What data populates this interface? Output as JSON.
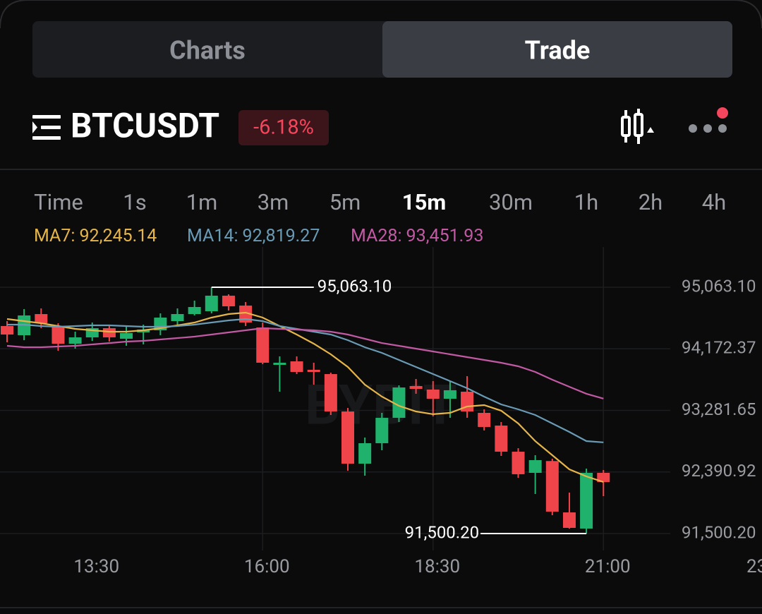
{
  "tabs": [
    "Charts",
    "Trade"
  ],
  "header": {
    "symbol": "BTCUSDT",
    "change": "-6.18%"
  },
  "intervals": [
    "Time",
    "1s",
    "1m",
    "3m",
    "5m",
    "15m",
    "30m",
    "1h",
    "2h",
    "4h"
  ],
  "selected_interval": "15m",
  "chart_data": {
    "type": "candlestick",
    "watermark": "BYBIT",
    "categories": [
      null,
      null,
      null,
      null,
      null,
      "13:30",
      null,
      null,
      null,
      null,
      null,
      null,
      null,
      null,
      null,
      "16:00",
      null,
      null,
      null,
      null,
      null,
      null,
      null,
      null,
      null,
      "18:30",
      null,
      null,
      null,
      null,
      null,
      null,
      null,
      null,
      null,
      "21:00"
    ],
    "x_overflow_label": "23",
    "open": [
      94502,
      94369,
      94675,
      94491,
      94246,
      94338,
      94471,
      94318,
      94410,
      94440,
      94573,
      94675,
      94716,
      94941,
      94798,
      94481,
      93940,
      93991,
      93869,
      93807,
      93266,
      92511,
      92807,
      93174,
      93634,
      93583,
      93450,
      93552,
      93246,
      93062,
      92684,
      92378,
      92549,
      91806,
      91572,
      92378
    ],
    "high": [
      94573,
      94747,
      94757,
      94542,
      94420,
      94553,
      94522,
      94502,
      94522,
      94685,
      94757,
      94869,
      95063.1,
      94961,
      94849,
      94553,
      94063,
      94063,
      93971,
      93828,
      93317,
      92889,
      93246,
      93644,
      93736,
      93705,
      93705,
      93777,
      93297,
      93113,
      92735,
      92633,
      92582,
      92092,
      92439,
      92419
    ],
    "low": [
      94267,
      94297,
      94471,
      94144,
      94175,
      94287,
      94277,
      94216,
      94236,
      94369,
      94522,
      94655,
      94685,
      94726,
      94502,
      93950,
      93552,
      93807,
      93654,
      93215,
      92409,
      92337,
      92705,
      93113,
      93522,
      93195,
      93174,
      93174,
      92991,
      92623,
      92306,
      92072,
      91766,
      91572,
      91500.2,
      92041
    ],
    "close": [
      94379,
      94655,
      94542,
      94246,
      94338,
      94471,
      94338,
      94400,
      94451,
      94624,
      94675,
      94777,
      94941,
      94787,
      94553,
      93971,
      93971,
      93838,
      93838,
      93266,
      92511,
      92807,
      93174,
      93613,
      93593,
      93450,
      93573,
      93266,
      93042,
      92684,
      92358,
      92562,
      91817,
      91582,
      92378,
      92245
    ],
    "up_color": "#20b26c",
    "down_color": "#ef454a",
    "high_label": "95,063.10",
    "low_label": "91,500.20",
    "series": [
      {
        "name": "MA7:",
        "color": "#e6b54a",
        "last_value_label": "92,245.14",
        "values": [
          94604,
          94573,
          94542,
          94502,
          94461,
          94440,
          94420,
          94420,
          94440,
          94471,
          94512,
          94553,
          94624,
          94675,
          94696,
          94624,
          94502,
          94379,
          94246,
          94093,
          93909,
          93654,
          93481,
          93348,
          93266,
          93226,
          93246,
          93338,
          93358,
          93277,
          93093,
          92837,
          92633,
          92429,
          92327,
          92245.14
        ]
      },
      {
        "name": "MA14:",
        "color": "#6a9bb5",
        "last_value_label": "92,819.27",
        "values": [
          94522,
          94522,
          94502,
          94491,
          94502,
          94512,
          94512,
          94502,
          94491,
          94491,
          94502,
          94522,
          94553,
          94583,
          94604,
          94573,
          94502,
          94461,
          94420,
          94379,
          94297,
          94195,
          94114,
          94012,
          93909,
          93807,
          93705,
          93603,
          93481,
          93368,
          93297,
          93215,
          93093,
          92970,
          92837,
          92819.27
        ]
      },
      {
        "name": "MA28:",
        "color": "#c25aa3",
        "last_value_label": "93,451.93",
        "values": [
          94216,
          94195,
          94195,
          94205,
          94216,
          94236,
          94256,
          94277,
          94287,
          94308,
          94328,
          94348,
          94379,
          94410,
          94440,
          94471,
          94461,
          94451,
          94440,
          94420,
          94379,
          94318,
          94256,
          94216,
          94175,
          94134,
          94093,
          94052,
          94012,
          93971,
          93920,
          93838,
          93726,
          93624,
          93522,
          93451.93
        ]
      }
    ],
    "ylim": [
      91255,
      95645
    ],
    "yticks": [
      {
        "value": 95063.1,
        "label": "95,063.10"
      },
      {
        "value": 94172.37,
        "label": "94,172.37"
      },
      {
        "value": 93281.65,
        "label": "93,281.65"
      },
      {
        "value": 92390.92,
        "label": "92,390.92"
      },
      {
        "value": 91500.2,
        "label": "91,500.20"
      }
    ],
    "grid": true
  }
}
